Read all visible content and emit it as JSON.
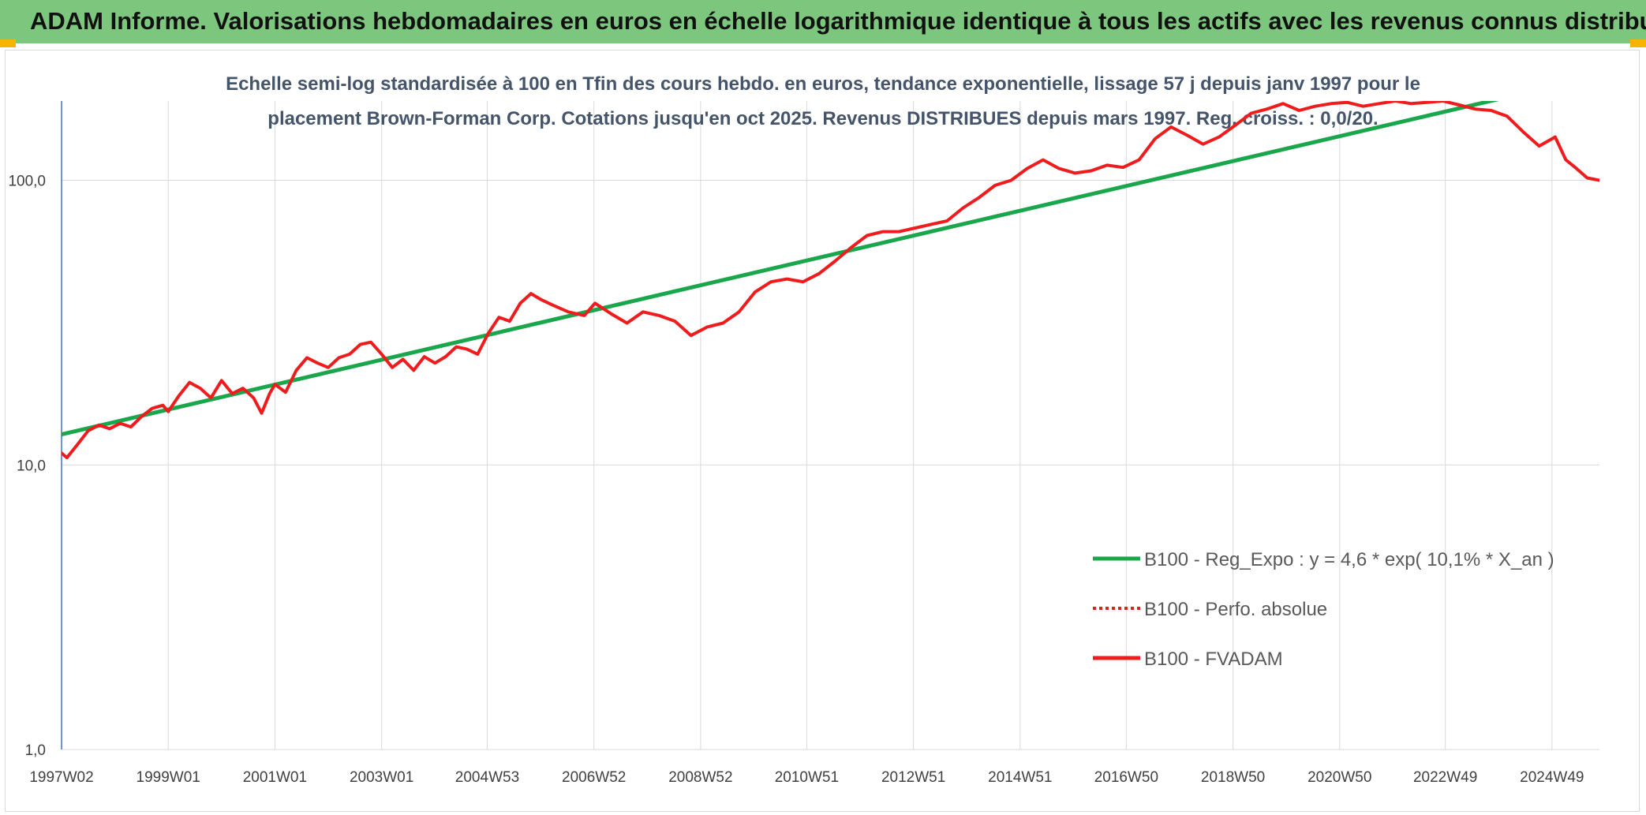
{
  "banner": {
    "title": "ADAM Informe. Valorisations hebdomadaires en euros en échelle logarithmique identique à tous les actifs avec les revenus connus distribués"
  },
  "colors": {
    "banner_bg": "#7dc67d",
    "corner_accent": "#f4b400",
    "trend_line": "#1aa64b",
    "fvadam_line": "#ee1c1c",
    "perfo_line": "#ee1c1c",
    "grid": "#d9d9d9",
    "axis": "#4472c4"
  },
  "chart_data": {
    "type": "line",
    "title_lines": [
      "Echelle semi-log standardisée à 100 en Tfin des cours hebdo. en euros, tendance exponentielle, lissage 57 j depuis janv 1997 pour le",
      "placement Brown-Forman Corp. Cotations jusqu'en oct 2025. Revenus DISTRIBUES depuis mars 1997. Reg. croiss. : 0,0/20."
    ],
    "y_scale": "log",
    "ylim": [
      1,
      190
    ],
    "y_ticks": [
      1,
      10,
      100
    ],
    "y_tick_labels": [
      "1,0",
      "10,0",
      "100,0"
    ],
    "x_range": [
      1997.0,
      2025.83
    ],
    "x_ticks": [
      1997.0,
      1999.0,
      2001.0,
      2003.0,
      2004.98,
      2006.98,
      2008.98,
      2010.97,
      2012.97,
      2014.97,
      2016.96,
      2018.96,
      2020.96,
      2022.94,
      2024.94
    ],
    "x_tick_labels": [
      "1997W02",
      "1999W01",
      "2001W01",
      "2003W01",
      "2004W53",
      "2006W52",
      "2008W52",
      "2010W51",
      "2012W51",
      "2014W51",
      "2016W50",
      "2018W50",
      "2020W50",
      "2022W49",
      "2024W49"
    ],
    "grid": true,
    "legend_position": "bottom-right",
    "legend": [
      {
        "label": "B100 - Reg_Expo : y = 4,6 * exp( 10,1% *  X_an )",
        "style": "solid",
        "color": "#1aa64b"
      },
      {
        "label": "B100 - Perfo. absolue",
        "style": "dotted",
        "color": "#ee1c1c"
      },
      {
        "label": "B100 - FVADAM",
        "style": "solid",
        "color": "#ee1c1c"
      }
    ],
    "series": [
      {
        "name": "B100 - Reg_Expo : y = 4,6 * exp( 10,1% *  X_an )",
        "type": "regression",
        "x": [
          1997.0,
          2024.2
        ],
        "y": [
          12.8,
          198
        ]
      },
      {
        "name": "B100 - FVADAM",
        "type": "line",
        "x": [
          1997.0,
          1997.1,
          1997.3,
          1997.5,
          1997.7,
          1997.9,
          1998.1,
          1998.3,
          1998.5,
          1998.7,
          1998.9,
          1999.0,
          1999.2,
          1999.4,
          1999.6,
          1999.8,
          2000.0,
          2000.2,
          2000.4,
          2000.6,
          2000.75,
          2000.9,
          2001.0,
          2001.2,
          2001.4,
          2001.6,
          2001.8,
          2002.0,
          2002.2,
          2002.4,
          2002.6,
          2002.8,
          2003.0,
          2003.2,
          2003.4,
          2003.6,
          2003.8,
          2004.0,
          2004.2,
          2004.4,
          2004.6,
          2004.8,
          2005.0,
          2005.2,
          2005.4,
          2005.6,
          2005.8,
          2006.0,
          2006.2,
          2006.5,
          2006.8,
          2007.0,
          2007.3,
          2007.6,
          2007.9,
          2008.2,
          2008.5,
          2008.8,
          2009.1,
          2009.4,
          2009.7,
          2010.0,
          2010.3,
          2010.6,
          2010.9,
          2011.2,
          2011.5,
          2011.8,
          2012.1,
          2012.4,
          2012.7,
          2013.0,
          2013.3,
          2013.6,
          2013.9,
          2014.2,
          2014.5,
          2014.8,
          2015.1,
          2015.4,
          2015.7,
          2016.0,
          2016.3,
          2016.6,
          2016.9,
          2017.2,
          2017.5,
          2017.8,
          2018.1,
          2018.4,
          2018.7,
          2019.0,
          2019.3,
          2019.6,
          2019.9,
          2020.2,
          2020.5,
          2020.8,
          2021.1,
          2021.4,
          2021.7,
          2022.0,
          2022.3,
          2022.6,
          2022.9,
          2023.2,
          2023.5,
          2023.8,
          2024.1,
          2024.4,
          2024.7,
          2025.0,
          2025.2,
          2025.4,
          2025.6,
          2025.83
        ],
        "y": [
          11.0,
          10.6,
          11.8,
          13.2,
          13.8,
          13.4,
          14.0,
          13.6,
          14.8,
          15.8,
          16.2,
          15.4,
          17.5,
          19.5,
          18.6,
          17.2,
          19.8,
          17.8,
          18.6,
          17.2,
          15.2,
          17.8,
          19.2,
          18.0,
          21.5,
          23.8,
          22.8,
          22.0,
          23.8,
          24.5,
          26.5,
          27.0,
          24.5,
          22.0,
          23.5,
          21.5,
          24.0,
          22.8,
          24.0,
          26.0,
          25.5,
          24.5,
          29.0,
          33.0,
          32.0,
          37.0,
          40.0,
          38.0,
          36.5,
          34.5,
          33.5,
          37.0,
          34.0,
          31.5,
          34.5,
          33.5,
          32.0,
          28.5,
          30.5,
          31.5,
          34.5,
          40.5,
          44.0,
          45.0,
          44.0,
          47.0,
          52.0,
          58.0,
          64.0,
          66.0,
          66.0,
          68.0,
          70.0,
          72.0,
          80.0,
          87.0,
          96.0,
          100.0,
          110.0,
          118.0,
          110.0,
          106.0,
          108.0,
          113.0,
          111.0,
          118.0,
          140.0,
          154.0,
          144.0,
          134.0,
          142.0,
          156.0,
          172.0,
          178.0,
          186.0,
          176.0,
          182.0,
          186.0,
          188.0,
          182.0,
          186.0,
          190.0,
          186.0,
          188.0,
          190.0,
          184.0,
          178.0,
          176.0,
          168.0,
          148.0,
          132.0,
          142.0,
          118.0,
          110.0,
          102.0,
          100.0
        ]
      }
    ]
  }
}
